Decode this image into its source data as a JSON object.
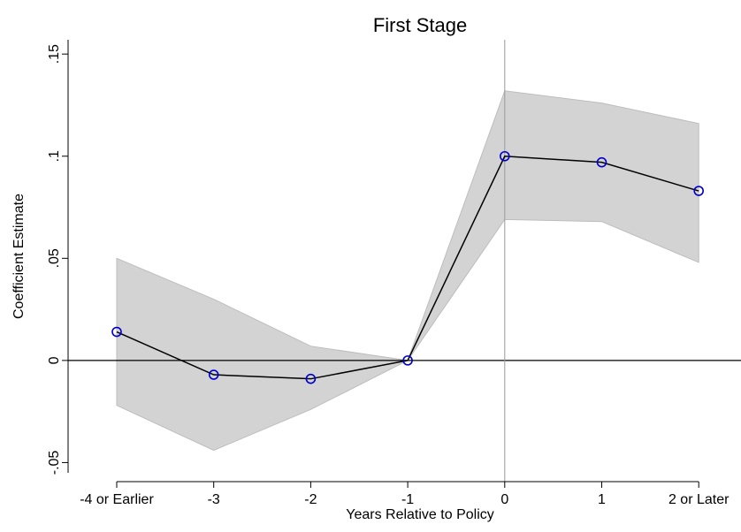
{
  "chart_data": {
    "type": "line",
    "title": "First Stage",
    "xlabel": "Years Relative to Policy",
    "ylabel": "Coefficient Estimate",
    "categories": [
      "-4 or Earlier",
      "-3",
      "-2",
      "-1",
      "0",
      "1",
      "2 or Later"
    ],
    "values": [
      0.014,
      -0.007,
      -0.009,
      0,
      0.1,
      0.097,
      0.083
    ],
    "ci_upper": [
      0.05,
      0.03,
      0.007,
      0,
      0.132,
      0.126,
      0.116
    ],
    "ci_lower": [
      -0.022,
      -0.044,
      -0.024,
      0,
      0.069,
      0.068,
      0.048
    ],
    "color": "#000000",
    "marker_color": "#0000cc",
    "band_color": "#d3d3d3",
    "ylim": [
      -0.055,
      0.157
    ],
    "yticks": [
      {
        "value": -0.05,
        "label": "-.05"
      },
      0,
      {
        "value": 0.05,
        "label": ".05"
      },
      {
        "value": 0.1,
        "label": ".1"
      },
      {
        "value": 0.15,
        "label": ".15"
      }
    ],
    "hline": 0,
    "xline": "0"
  }
}
